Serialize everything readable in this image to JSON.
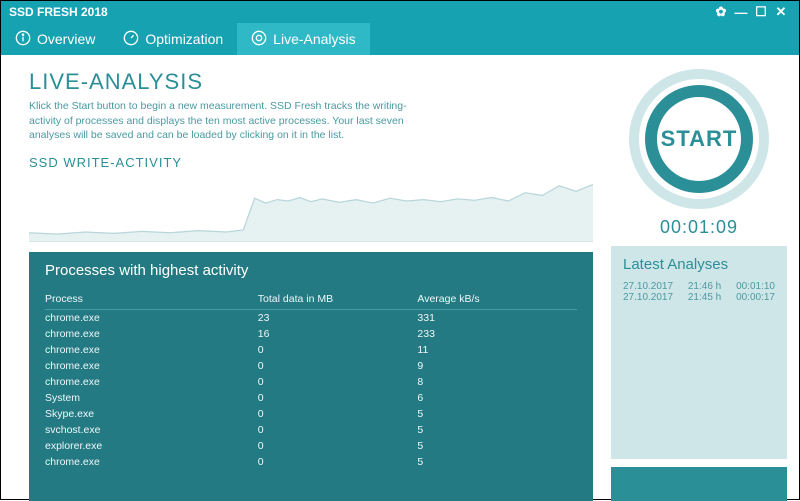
{
  "window": {
    "title": "SSD FRESH 2018",
    "colors": {
      "accent": "#17a2b2",
      "accent_light": "#2fb8c5",
      "teal_dark": "#247a83",
      "teal_text": "#2b8f98",
      "panel_pale": "#cfe6e8"
    }
  },
  "tabs": [
    {
      "label": "Overview",
      "icon": "info"
    },
    {
      "label": "Optimization",
      "icon": "gauge"
    },
    {
      "label": "Live-Analysis",
      "icon": "target",
      "active": true
    }
  ],
  "page": {
    "heading": "LIVE-ANALYSIS",
    "description": "Klick the Start button to begin a new measurement. SSD Fresh tracks the writing-activity of processes and displays the ten most active processes. Your last seven analyses will be saved and can be loaded by clicking on it in the list.",
    "chart_title": "SSD WRITE-ACTIVITY"
  },
  "chart": {
    "type": "area",
    "stroke": "#b7d6d9",
    "fill": "#e6f1f2",
    "xlim": [
      0,
      100
    ],
    "ylim": [
      0,
      100
    ],
    "points": [
      [
        0,
        12
      ],
      [
        5,
        10
      ],
      [
        10,
        13
      ],
      [
        15,
        11
      ],
      [
        20,
        14
      ],
      [
        25,
        12
      ],
      [
        30,
        15
      ],
      [
        35,
        13
      ],
      [
        38,
        16
      ],
      [
        40,
        62
      ],
      [
        42,
        55
      ],
      [
        44,
        60
      ],
      [
        46,
        58
      ],
      [
        48,
        63
      ],
      [
        50,
        57
      ],
      [
        52,
        61
      ],
      [
        55,
        56
      ],
      [
        58,
        60
      ],
      [
        61,
        55
      ],
      [
        64,
        62
      ],
      [
        67,
        58
      ],
      [
        70,
        60
      ],
      [
        73,
        57
      ],
      [
        76,
        61
      ],
      [
        79,
        59
      ],
      [
        82,
        63
      ],
      [
        85,
        58
      ],
      [
        88,
        70
      ],
      [
        91,
        66
      ],
      [
        94,
        80
      ],
      [
        97,
        72
      ],
      [
        100,
        82
      ]
    ]
  },
  "processes": {
    "title": "Processes with highest activity",
    "columns": [
      "Process",
      "Total data in MB",
      "Average kB/s"
    ],
    "rows": [
      [
        "chrome.exe",
        "23",
        "331"
      ],
      [
        "chrome.exe",
        "16",
        "233"
      ],
      [
        "chrome.exe",
        "0",
        "11"
      ],
      [
        "chrome.exe",
        "0",
        "9"
      ],
      [
        "chrome.exe",
        "0",
        "8"
      ],
      [
        "System",
        "0",
        "6"
      ],
      [
        "Skype.exe",
        "0",
        "5"
      ],
      [
        "svchost.exe",
        "0",
        "5"
      ],
      [
        "explorer.exe",
        "0",
        "5"
      ],
      [
        "chrome.exe",
        "0",
        "5"
      ]
    ]
  },
  "start": {
    "label": "START",
    "timer": "00:01:09"
  },
  "latest": {
    "title": "Latest Analyses",
    "items": [
      {
        "date": "27.10.2017",
        "time": "21:46 h",
        "duration": "00:01:10"
      },
      {
        "date": "27.10.2017",
        "time": "21:45 h",
        "duration": "00:00:17"
      }
    ]
  }
}
